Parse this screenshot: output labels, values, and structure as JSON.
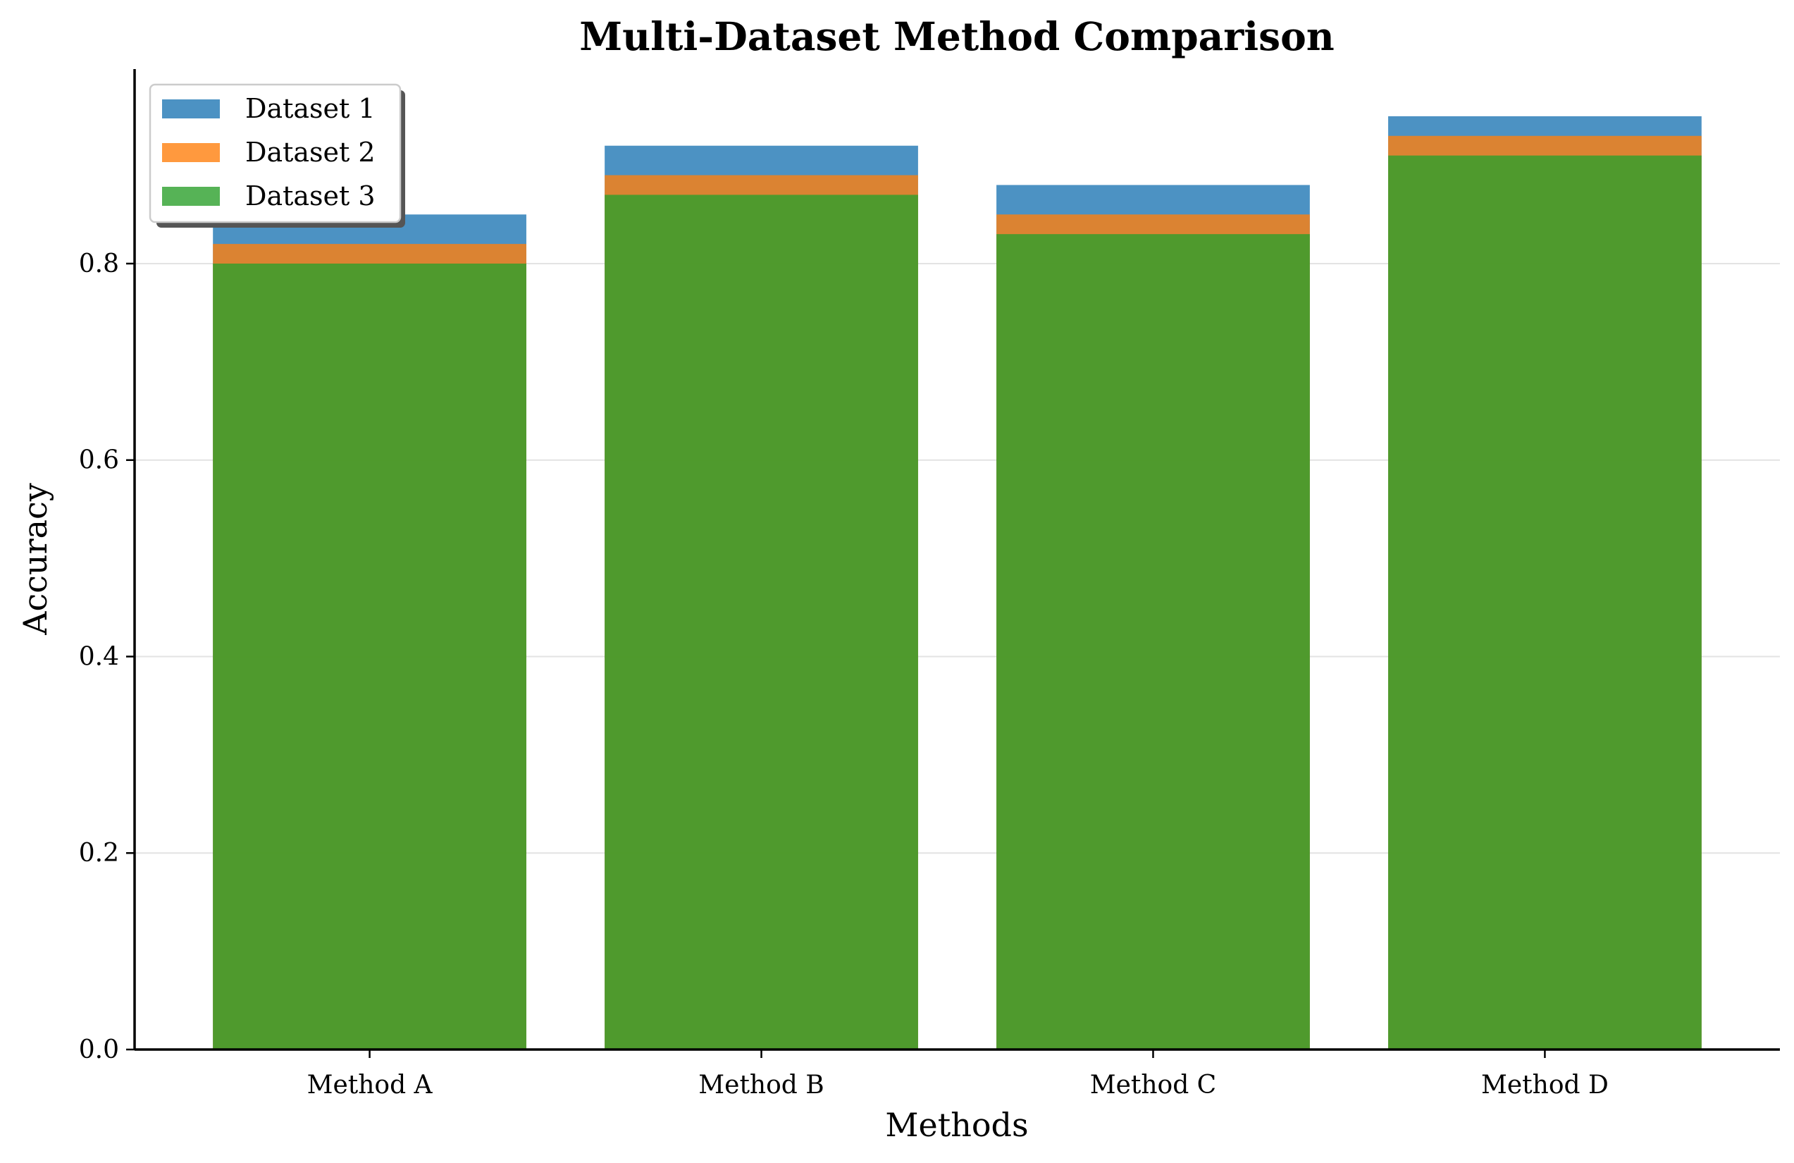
{
  "chart_data": {
    "type": "bar",
    "title": "Multi-Dataset Method Comparison",
    "xlabel": "Methods",
    "ylabel": "Accuracy",
    "categories": [
      "Method A",
      "Method B",
      "Method C",
      "Method D"
    ],
    "series": [
      {
        "name": "Dataset 1",
        "color": "#1f77b4",
        "values": [
          0.85,
          0.92,
          0.88,
          0.95
        ]
      },
      {
        "name": "Dataset 2",
        "color": "#ff7f0e",
        "values": [
          0.82,
          0.89,
          0.85,
          0.93
        ]
      },
      {
        "name": "Dataset 3",
        "color": "#2ca02c",
        "values": [
          0.8,
          0.87,
          0.83,
          0.91
        ]
      }
    ],
    "overlay": true,
    "bar_opacity": 0.8,
    "ylim": [
      0,
      0.998
    ],
    "yticks": [
      0.0,
      0.2,
      0.4,
      0.6,
      0.8
    ],
    "ytick_labels": [
      "0.0",
      "0.2",
      "0.4",
      "0.6",
      "0.8"
    ],
    "grid": "y",
    "legend_position": "top-left",
    "legend_shadow": true
  }
}
